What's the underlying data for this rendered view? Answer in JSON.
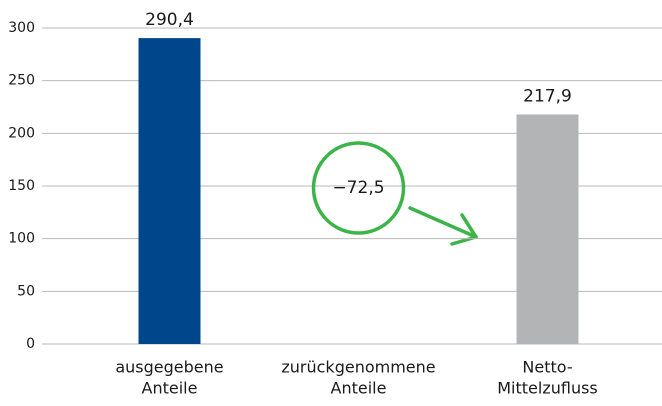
{
  "chart_data": {
    "type": "bar",
    "categories": [
      [
        "ausgegebene",
        "Anteile"
      ],
      [
        "zurückgenommene",
        "Anteile"
      ],
      [
        "Netto-",
        "Mittelzufluss"
      ]
    ],
    "values": [
      290.4,
      null,
      217.9
    ],
    "value_labels": [
      "290,4",
      null,
      "217,9"
    ],
    "colors": [
      "#00468b",
      null,
      "#b3b4b6"
    ],
    "annotations": [
      {
        "label": "−72,5",
        "value": -72.5,
        "category": 1,
        "color": "#3cb44a"
      }
    ],
    "ylim": [
      0,
      300
    ],
    "yticks": [
      0,
      50,
      100,
      150,
      200,
      250,
      300
    ],
    "grid": true
  }
}
